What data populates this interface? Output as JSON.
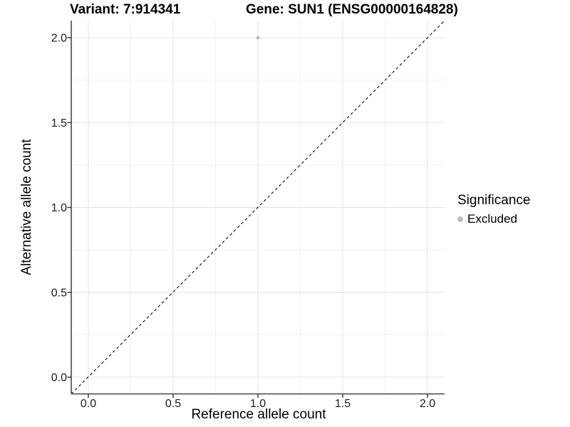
{
  "header": {
    "variant_title": "Variant: 7:914341",
    "gene_title": "Gene: SUN1 (ENSG00000164828)"
  },
  "legend": {
    "title": "Significance",
    "items": [
      {
        "label": "Excluded",
        "color": "#bdbdbd"
      }
    ]
  },
  "chart_data": {
    "type": "scatter",
    "title": "Variant: 7:914341",
    "subtitle": "Gene: SUN1 (ENSG00000164828)",
    "xlabel": "Reference allele count",
    "ylabel": "Alternative allele count",
    "xlim": [
      -0.1,
      2.1
    ],
    "ylim": [
      -0.1,
      2.1
    ],
    "xticks": {
      "values": [
        0,
        0.5,
        1,
        1.5,
        2
      ],
      "labels": [
        "0.0",
        "0.5",
        "1.0",
        "1.5",
        "2.0"
      ]
    },
    "yticks": {
      "values": [
        0,
        0.5,
        1,
        1.5,
        2
      ],
      "labels": [
        "0.0",
        "0.5",
        "1.0",
        "1.5",
        "2.0"
      ]
    },
    "x_minor": [
      0.25,
      0.75,
      1.25,
      1.75
    ],
    "y_minor": [
      0.25,
      0.75,
      1.25,
      1.75
    ],
    "grid": true,
    "legend_position": "right",
    "legend_title": "Significance",
    "series": [
      {
        "name": "Excluded",
        "color": "#bdbdbd",
        "points": [
          {
            "x": 1.0,
            "y": 2.0
          }
        ]
      }
    ],
    "reference_line": {
      "type": "identity",
      "slope": 1,
      "intercept": 0,
      "style": "dashed",
      "color": "#1a1a1a"
    },
    "colors": {
      "panel_bg": "#ffffff",
      "grid_major": "#e4e4e4",
      "grid_minor": "#f1f1f1",
      "axis_line": "#474747",
      "tick_mark": "#333333",
      "tick_label": "#1a1a1a"
    }
  }
}
